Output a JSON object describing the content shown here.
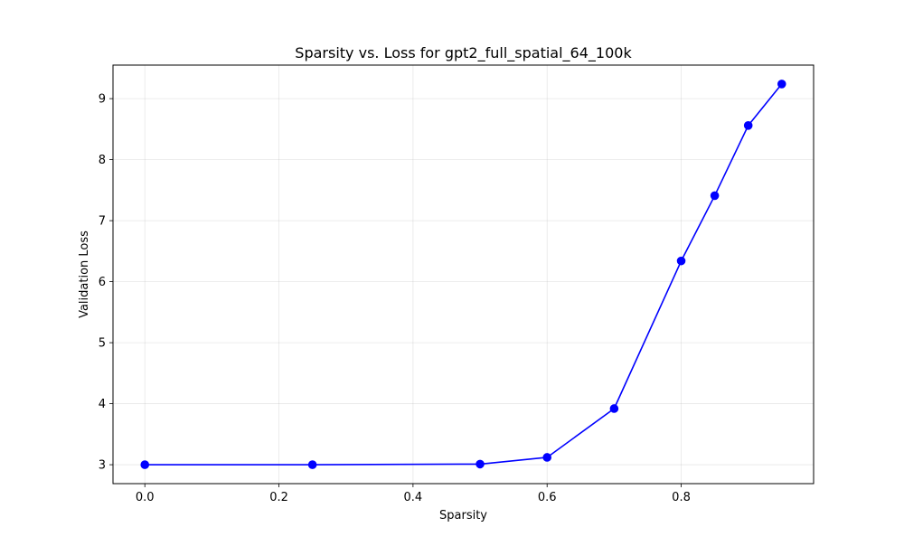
{
  "chart_data": {
    "type": "line",
    "title": "Sparsity vs. Loss for gpt2_full_spatial_64_100k",
    "xlabel": "Sparsity",
    "ylabel": "Validation Loss",
    "x": [
      0.0,
      0.25,
      0.5,
      0.6,
      0.7,
      0.8,
      0.85,
      0.9,
      0.95
    ],
    "series": [
      {
        "values": [
          3.0,
          3.0,
          3.01,
          3.12,
          3.92,
          6.34,
          7.41,
          8.56,
          9.24
        ],
        "color": "#0000ff",
        "marker": "circle"
      }
    ],
    "xlim": [
      -0.0475,
      0.9975
    ],
    "ylim": [
      2.69,
      9.55
    ],
    "x_ticks": [
      0.0,
      0.2,
      0.4,
      0.6,
      0.8
    ],
    "x_tick_labels": [
      "0.0",
      "0.2",
      "0.4",
      "0.6",
      "0.8"
    ],
    "y_ticks": [
      3,
      4,
      5,
      6,
      7,
      8,
      9
    ],
    "y_tick_labels": [
      "3",
      "4",
      "5",
      "6",
      "7",
      "8",
      "9"
    ],
    "grid": true,
    "legend": false
  }
}
